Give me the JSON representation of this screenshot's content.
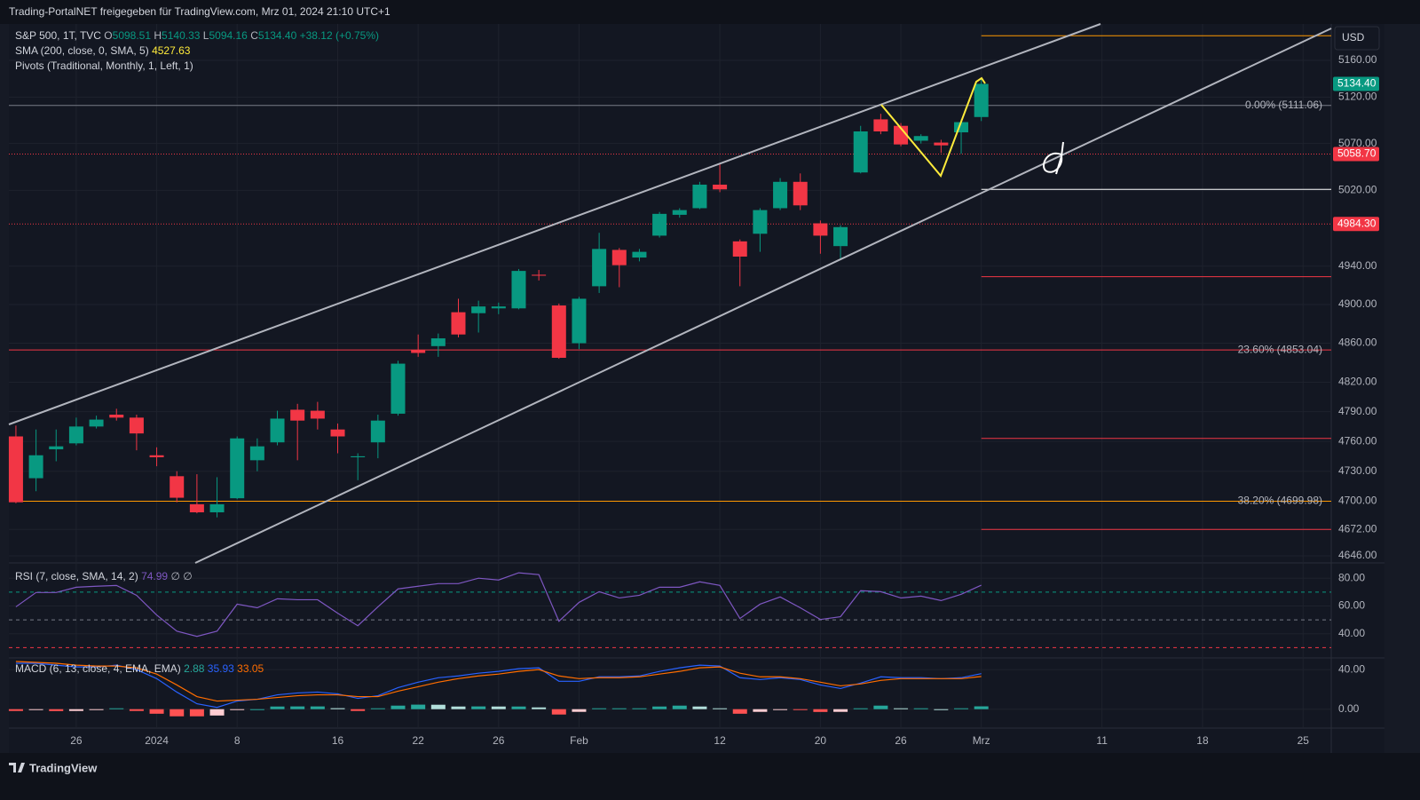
{
  "header": "Trading-PortalNET freigegeben für TradingView.com, Mrz 01, 2024 21:10 UTC+1",
  "footer": "TradingView",
  "chart_data": [
    {
      "type": "candlestick",
      "symbol": "S&P 500, 1T, TVC",
      "ohlc_keys": [
        "O",
        "H",
        "L",
        "C"
      ],
      "change": "+38.12 (+0.75%)",
      "sma_title": "SMA (200, close, 0, SMA, 5)",
      "sma_value": 4527.63,
      "pivots_title": "Pivots (Traditional, Monthly, 1, Left, 1)",
      "currency": "USD",
      "log": true,
      "grid": true,
      "up_color": "#089981",
      "down_color": "#f23645",
      "xlim": [
        -0.35,
        65.4
      ],
      "xticks": [
        {
          "value": 3,
          "label": "26"
        },
        {
          "value": 7,
          "label": "2024"
        },
        {
          "value": 11,
          "label": "8"
        },
        {
          "value": 16,
          "label": "16"
        },
        {
          "value": 20,
          "label": "22"
        },
        {
          "value": 24,
          "label": "26"
        },
        {
          "value": 28,
          "label": "Feb"
        },
        {
          "value": 35,
          "label": "12"
        },
        {
          "value": 40,
          "label": "20"
        },
        {
          "value": 44,
          "label": "26"
        },
        {
          "value": 48,
          "label": "Mrz"
        },
        {
          "value": 54,
          "label": "11"
        },
        {
          "value": 59,
          "label": "18"
        },
        {
          "value": 64,
          "label": "25"
        }
      ],
      "ylim": [
        4639,
        5200
      ],
      "yticks": [
        {
          "value": 4646,
          "label": "4646.00"
        },
        {
          "value": 4672,
          "label": "4672.00"
        },
        {
          "value": 4700,
          "label": "4700.00"
        },
        {
          "value": 4730,
          "label": "4730.00"
        },
        {
          "value": 4760,
          "label": "4760.00"
        },
        {
          "value": 4790,
          "label": "4790.00"
        },
        {
          "value": 4820,
          "label": "4820.00"
        },
        {
          "value": 4860,
          "label": "4860.00"
        },
        {
          "value": 4900,
          "label": "4900.00"
        },
        {
          "value": 4940,
          "label": "4940.00"
        },
        {
          "value": 5020,
          "label": "5020.00"
        },
        {
          "value": 5070,
          "label": "5070.00"
        },
        {
          "value": 5120,
          "label": "5120.00"
        },
        {
          "value": 5160,
          "label": "5160.00"
        }
      ],
      "open": [
        4765,
        4723,
        4752,
        4758,
        4775,
        4787,
        4784,
        4746,
        4725,
        4697,
        4689,
        4703,
        4741,
        4759,
        4792,
        4791,
        4772,
        4744,
        4759,
        4788,
        4853,
        4857,
        4892,
        4891,
        4896,
        4896,
        4931,
        4899,
        4860,
        4919,
        4957,
        4949,
        4972,
        4994,
        5001,
        5026,
        4966,
        4974,
        5001,
        5029,
        4985,
        4961,
        5039,
        5096,
        5089,
        5073,
        5071,
        5082,
        5098.51
      ],
      "high": [
        4776,
        4772,
        4772,
        4784,
        4786,
        4793,
        4787,
        4754,
        4730,
        4727,
        4724,
        4765,
        4763,
        4791,
        4798,
        4800,
        4778,
        4748,
        4787,
        4842,
        4869,
        4870,
        4906,
        4904,
        4902,
        4937,
        4936,
        4901,
        4908,
        4975,
        4959,
        4958,
        4997,
        5001,
        5029,
        5048,
        4968,
        5001,
        5033,
        5038,
        4988,
        4983,
        5089,
        5102,
        5092,
        5080,
        5074,
        5096,
        5140.33
      ],
      "low": [
        4698,
        4710,
        4740,
        4756,
        4773,
        4781,
        4751,
        4735,
        4699,
        4688,
        4684,
        4702,
        4730,
        4756,
        4741,
        4772,
        4748,
        4721,
        4743,
        4786,
        4846,
        4846,
        4866,
        4871,
        4890,
        4895,
        4925,
        4844,
        4854,
        4912,
        4918,
        4945,
        4970,
        4991,
        5000,
        5018,
        4919,
        4955,
        4999,
        4999,
        4953,
        4947,
        5038,
        5080,
        5067,
        5070,
        5060,
        5059,
        5094.16
      ],
      "close": [
        4699,
        4746,
        4755,
        4775,
        4782,
        4784,
        4768,
        4744,
        4703.5,
        4689,
        4697,
        4763,
        4755,
        4783,
        4781,
        4783,
        4765,
        4745,
        4781,
        4839,
        4850,
        4865,
        4869,
        4898,
        4898,
        4935,
        4930,
        4845,
        4906,
        4958,
        4941,
        4955,
        4995,
        4999,
        5026,
        5021,
        4950,
        4999,
        5029,
        5004,
        4972,
        4981,
        5083,
        5083,
        5069,
        5078,
        5068,
        5093,
        5134.4
      ],
      "fib": [
        {
          "label": "0.00% (5111.06)",
          "value": 5111.06,
          "color": "#787b86"
        },
        {
          "label": "23.60% (4853.04)",
          "value": 4853.04,
          "color": "#f23645"
        },
        {
          "label": "38.20% (4699.98)",
          "value": 4699.98,
          "color": "#ff9800"
        }
      ],
      "pivots": [
        {
          "value": 5187,
          "color": "#ff9800"
        },
        {
          "value": 5021,
          "color": "#ffffff"
        },
        {
          "value": 4929,
          "color": "#f23645"
        },
        {
          "value": 4763,
          "color": "#f23645"
        },
        {
          "value": 4672,
          "color": "#f23645"
        }
      ],
      "price_labels": [
        {
          "value": 5134.4,
          "label": "5134.40",
          "color": "#089981"
        },
        {
          "value": 5058.7,
          "label": "5058.70",
          "color": "#f23645"
        },
        {
          "value": 4984.3,
          "label": "4984.30",
          "color": "#f23645"
        }
      ]
    },
    {
      "type": "line",
      "title": "RSI (7, close, SMA, 14, 2)",
      "extra": "∅ ∅",
      "ylim": [
        22.6,
        91
      ],
      "yticks": [
        {
          "value": 40,
          "label": "40.00"
        },
        {
          "value": 60,
          "label": "60.00"
        },
        {
          "value": 80,
          "label": "80.00"
        }
      ],
      "levels": [
        {
          "value": 70,
          "color": "#089981"
        },
        {
          "value": 50,
          "color": "#787b86"
        },
        {
          "value": 30,
          "color": "#f23645"
        }
      ],
      "series": [
        {
          "color": "#7e57c2",
          "values": [
            59.4,
            69.7,
            69.7,
            73.5,
            74.2,
            74.8,
            67.7,
            53.5,
            41.9,
            38.1,
            41.9,
            61.3,
            58.7,
            65.2,
            64.5,
            64.5,
            54.8,
            45.8,
            59.4,
            72.3,
            74.2,
            76.1,
            76.1,
            80,
            78.7,
            83.9,
            82.6,
            49,
            62.6,
            70.3,
            65.8,
            67.7,
            73.5,
            73.5,
            77.4,
            74.8,
            51,
            61.3,
            66.5,
            58.7,
            50.3,
            52.3,
            71,
            70.3,
            65.8,
            67.1,
            63.9,
            68.4,
            74.99
          ]
        }
      ]
    },
    {
      "type": "macd",
      "title": "MACD (6, 13, close, 4, EMA, EMA)",
      "ylim": [
        -19.1,
        51.8
      ],
      "yticks": [
        {
          "value": 0,
          "label": "0.00"
        },
        {
          "value": 40,
          "label": "40.00"
        }
      ],
      "series": [
        {
          "kind": "histogram",
          "values": [
            -1.8,
            -0.9,
            -1.9,
            -1.8,
            -0.9,
            0.9,
            -1.8,
            -4.6,
            -7.2,
            -7.2,
            -6.4,
            -0.9,
            0,
            2.7,
            2.8,
            2.8,
            1,
            -1.8,
            0.9,
            3.6,
            4.6,
            4.5,
            2.7,
            2.8,
            2.7,
            2.7,
            1.8,
            -5.4,
            -2.7,
            0.9,
            0.9,
            0.9,
            2.7,
            3.6,
            2.7,
            0.9,
            -4.6,
            -2.7,
            -0.9,
            -0.9,
            -2.8,
            -2.7,
            0.9,
            3.6,
            0.9,
            0.9,
            0,
            0.9,
            2.88
          ],
          "color": "#26a69a"
        },
        {
          "kind": "line",
          "color": "#2962ff",
          "values": [
            46.4,
            46.4,
            44.5,
            42.7,
            42.7,
            44.5,
            40,
            30.9,
            17.3,
            5.5,
            1.8,
            8.2,
            10,
            14.5,
            16.4,
            17.3,
            15.5,
            10.9,
            13.6,
            21.8,
            27.3,
            31.8,
            33.6,
            36.4,
            38.2,
            40.9,
            41.8,
            28.2,
            28.2,
            32.7,
            32.7,
            33.6,
            38.2,
            41.8,
            44.5,
            43.6,
            31.8,
            30,
            31.8,
            30,
            24.5,
            20.9,
            26.4,
            32.7,
            31.8,
            31.8,
            30.9,
            31.8,
            35.93
          ]
        },
        {
          "kind": "line",
          "color": "#ff6d00",
          "values": [
            48.2,
            47.3,
            46.4,
            44.5,
            43.6,
            43.6,
            41.8,
            35.5,
            24.5,
            12.7,
            8.2,
            9.1,
            10,
            11.8,
            13.6,
            14.5,
            14.5,
            12.7,
            12.7,
            18.2,
            22.7,
            27.3,
            30.9,
            33.6,
            35.5,
            38.2,
            40,
            33.6,
            30.9,
            31.8,
            31.8,
            32.7,
            35.5,
            38.2,
            41.8,
            42.7,
            36.4,
            32.7,
            32.7,
            30.9,
            27.3,
            23.6,
            25.5,
            29.1,
            30.9,
            30.9,
            30.9,
            30.9,
            33.05
          ]
        }
      ]
    }
  ]
}
